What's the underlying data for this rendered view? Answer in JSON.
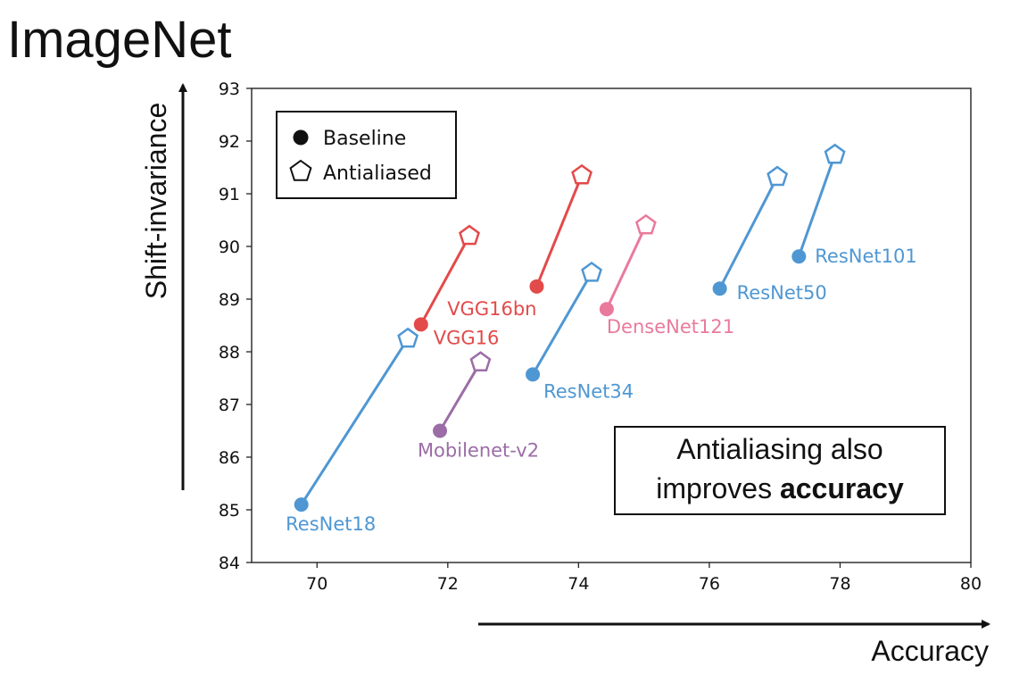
{
  "title": "ImageNet",
  "chart_data": {
    "type": "scatter",
    "title": "",
    "xlabel": "Accuracy",
    "ylabel": "Shift-invariance",
    "xlim": [
      69,
      80
    ],
    "ylim": [
      84,
      93
    ],
    "xticks": [
      70,
      72,
      74,
      76,
      78,
      80
    ],
    "yticks": [
      84,
      85,
      86,
      87,
      88,
      89,
      90,
      91,
      92,
      93
    ],
    "grid": false,
    "legend": {
      "position": "top-left",
      "entries": [
        {
          "label": "Baseline",
          "marker": "filled-circle"
        },
        {
          "label": "Antialiased",
          "marker": "open-pentagon"
        }
      ]
    },
    "models": [
      {
        "label": "ResNet18",
        "color": "#4f97d3",
        "baseline": [
          69.76,
          85.1
        ],
        "antialiased": [
          71.39,
          88.25
        ]
      },
      {
        "label": "VGG16",
        "color": "#e34a4a",
        "baseline": [
          71.59,
          88.52
        ],
        "antialiased": [
          72.33,
          90.2
        ]
      },
      {
        "label": "Mobilenet-v2",
        "color": "#9b6da6",
        "baseline": [
          71.88,
          86.5
        ],
        "antialiased": [
          72.5,
          87.8
        ]
      },
      {
        "label": "VGG16bn",
        "color": "#e34a4a",
        "baseline": [
          73.36,
          89.24
        ],
        "antialiased": [
          74.05,
          91.35
        ]
      },
      {
        "label": "ResNet34",
        "color": "#4f97d3",
        "baseline": [
          73.3,
          87.57
        ],
        "antialiased": [
          74.2,
          89.5
        ]
      },
      {
        "label": "DenseNet121",
        "color": "#e97a9c",
        "baseline": [
          74.43,
          88.81
        ],
        "antialiased": [
          75.03,
          90.4
        ]
      },
      {
        "label": "ResNet50",
        "color": "#4f97d3",
        "baseline": [
          76.16,
          89.2
        ],
        "antialiased": [
          77.04,
          91.32
        ]
      },
      {
        "label": "ResNet101",
        "color": "#4f97d3",
        "baseline": [
          77.37,
          89.81
        ],
        "antialiased": [
          77.92,
          91.74
        ]
      }
    ],
    "annotation": {
      "line1": "Antialiasing also",
      "line2_prefix": "improves ",
      "line2_emphasis": "accuracy"
    }
  }
}
